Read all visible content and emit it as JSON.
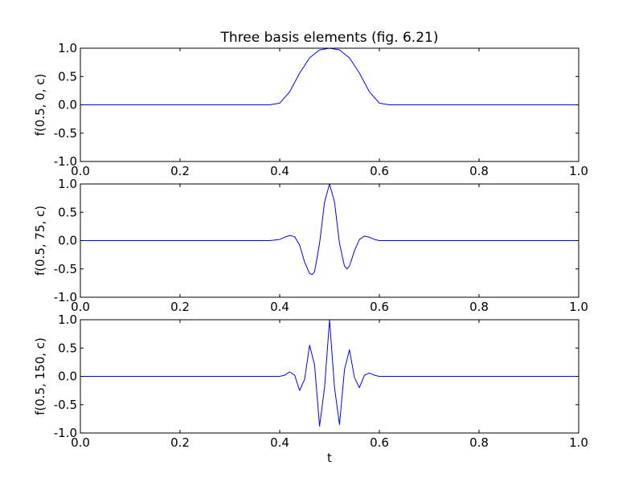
{
  "figure": {
    "title": "Three basis elements (fig. 6.21)",
    "xlabel": "t"
  },
  "style": {
    "line_color": "#0000ff",
    "axes_color": "#000000",
    "background": "#ffffff"
  },
  "chart_data": [
    {
      "type": "line",
      "title": "Three basis elements (fig. 6.21)",
      "xlabel": "",
      "ylabel": "f(0.5, 0, c)",
      "xlim": [
        0.0,
        1.0
      ],
      "ylim": [
        -1.0,
        1.0
      ],
      "xticks": [
        "0.0",
        "0.2",
        "0.4",
        "0.6",
        "0.8",
        "1.0"
      ],
      "yticks": [
        "1.0",
        "0.5",
        "0.0",
        "-0.5",
        "-1.0"
      ],
      "grid": false,
      "series": [
        {
          "center": 0.5,
          "omega": 0,
          "x": [
            0.0,
            0.1,
            0.2,
            0.3,
            0.35,
            0.38,
            0.4,
            0.42,
            0.44,
            0.46,
            0.48,
            0.5,
            0.52,
            0.54,
            0.56,
            0.58,
            0.6,
            0.62,
            0.65,
            0.7,
            0.8,
            0.9,
            1.0
          ],
          "y": [
            0.0,
            0.0,
            0.0,
            0.0,
            0.0,
            0.0,
            0.03,
            0.23,
            0.56,
            0.83,
            0.97,
            1.0,
            0.97,
            0.83,
            0.56,
            0.23,
            0.03,
            0.0,
            0.0,
            0.0,
            0.0,
            0.0,
            0.0
          ]
        }
      ]
    },
    {
      "type": "line",
      "title": "",
      "xlabel": "",
      "ylabel": "f(0.5, 75, c)",
      "xlim": [
        0.0,
        1.0
      ],
      "ylim": [
        -1.0,
        1.0
      ],
      "xticks": [
        "0.0",
        "0.2",
        "0.4",
        "0.6",
        "0.8",
        "1.0"
      ],
      "yticks": [
        "1.0",
        "0.5",
        "0.0",
        "-0.5",
        "-1.0"
      ],
      "grid": false,
      "series": [
        {
          "center": 0.5,
          "omega": 75,
          "x": [
            0.0,
            0.1,
            0.2,
            0.3,
            0.35,
            0.38,
            0.4,
            0.41,
            0.42,
            0.43,
            0.44,
            0.45,
            0.46,
            0.465,
            0.47,
            0.48,
            0.49,
            0.5,
            0.51,
            0.52,
            0.53,
            0.535,
            0.54,
            0.55,
            0.56,
            0.57,
            0.58,
            0.59,
            0.6,
            0.62,
            0.65,
            0.7,
            0.8,
            0.9,
            1.0
          ],
          "y": [
            0.0,
            0.0,
            0.0,
            0.0,
            0.0,
            0.0,
            0.02,
            0.06,
            0.09,
            0.07,
            -0.08,
            -0.38,
            -0.58,
            -0.6,
            -0.55,
            -0.05,
            0.68,
            1.0,
            0.68,
            -0.05,
            -0.45,
            -0.5,
            -0.45,
            -0.18,
            0.02,
            0.08,
            0.06,
            0.02,
            0.0,
            0.0,
            0.0,
            0.0,
            0.0,
            0.0,
            0.0
          ]
        }
      ]
    },
    {
      "type": "line",
      "title": "",
      "xlabel": "t",
      "ylabel": "f(0.5, 150, c)",
      "xlim": [
        0.0,
        1.0
      ],
      "ylim": [
        -1.0,
        1.0
      ],
      "xticks": [
        "0.0",
        "0.2",
        "0.4",
        "0.6",
        "0.8",
        "1.0"
      ],
      "yticks": [
        "1.0",
        "0.5",
        "0.0",
        "-0.5",
        "-1.0"
      ],
      "grid": false,
      "series": [
        {
          "center": 0.5,
          "omega": 150,
          "x": [
            0.0,
            0.1,
            0.2,
            0.3,
            0.35,
            0.38,
            0.4,
            0.41,
            0.42,
            0.43,
            0.44,
            0.45,
            0.46,
            0.47,
            0.48,
            0.49,
            0.5,
            0.51,
            0.52,
            0.53,
            0.54,
            0.55,
            0.56,
            0.57,
            0.58,
            0.59,
            0.6,
            0.62,
            0.65,
            0.7,
            0.8,
            0.9,
            1.0
          ],
          "y": [
            0.0,
            0.0,
            0.0,
            0.0,
            0.0,
            0.0,
            0.0,
            0.02,
            0.08,
            0.02,
            -0.25,
            -0.05,
            0.55,
            0.2,
            -0.88,
            -0.2,
            1.0,
            -0.2,
            -0.85,
            0.12,
            0.47,
            -0.02,
            -0.2,
            0.02,
            0.06,
            0.02,
            0.0,
            0.0,
            0.0,
            0.0,
            0.0,
            0.0,
            0.0
          ]
        }
      ]
    }
  ]
}
